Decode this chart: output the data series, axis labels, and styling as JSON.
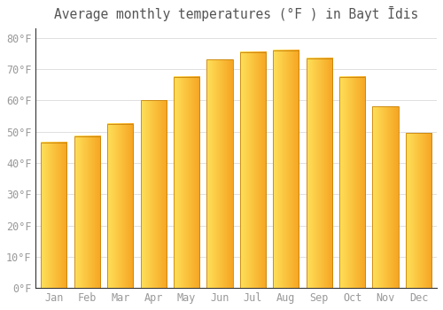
{
  "title": "Average monthly temperatures (°F ) in Bayt Īdis",
  "months": [
    "Jan",
    "Feb",
    "Mar",
    "Apr",
    "May",
    "Jun",
    "Jul",
    "Aug",
    "Sep",
    "Oct",
    "Nov",
    "Dec"
  ],
  "values": [
    46.5,
    48.5,
    52.5,
    60.0,
    67.5,
    73.0,
    75.5,
    76.0,
    73.5,
    67.5,
    58.0,
    49.5
  ],
  "bar_color_top": "#FFD966",
  "bar_color_bottom": "#F5A623",
  "bar_edge_color": "#C8820A",
  "background_color": "#FFFFFF",
  "grid_color": "#E0E0E0",
  "yticks": [
    0,
    10,
    20,
    30,
    40,
    50,
    60,
    70,
    80
  ],
  "ylim": [
    0,
    83
  ],
  "title_fontsize": 10.5,
  "tick_fontsize": 8.5,
  "tick_label_color": "#999999",
  "title_color": "#555555",
  "bar_width": 0.78
}
